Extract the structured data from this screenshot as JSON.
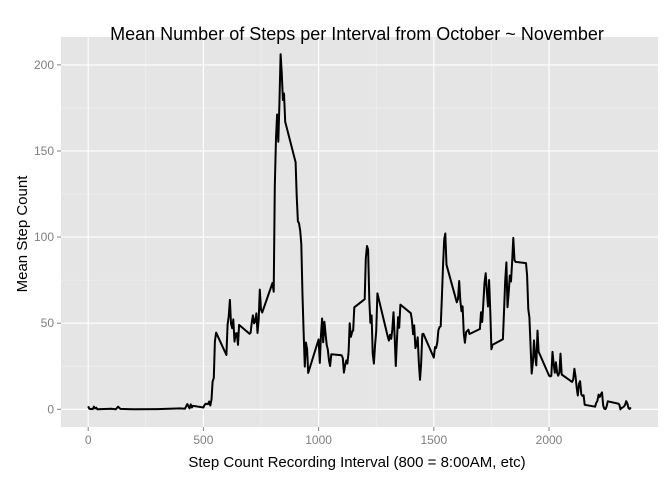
{
  "chart_data": {
    "type": "line",
    "title": "Mean Number of Steps per Interval from October ~ November",
    "xlabel": "Step Count Recording Interval (800 = 8:00AM, etc)",
    "ylabel": "Mean Step Count",
    "xlim": [
      -118,
      2473
    ],
    "ylim": [
      -10.3,
      216.2
    ],
    "xticks": [
      0,
      500,
      1000,
      1500,
      2000
    ],
    "yticks": [
      0,
      50,
      100,
      150,
      200
    ],
    "grid": true,
    "legend": "none",
    "colors": {
      "panel": "#e5e5e5",
      "grid_major": "#ffffff",
      "grid_minor": "#f2f2f2",
      "line": "#000000"
    },
    "series": [
      {
        "points": [
          [
            0,
            1.7
          ],
          [
            5,
            0.3
          ],
          [
            10,
            0.1
          ],
          [
            15,
            0.2
          ],
          [
            20,
            0.1
          ],
          [
            25,
            1.5
          ],
          [
            30,
            0.5
          ],
          [
            35,
            0.9
          ],
          [
            40,
            0.0
          ],
          [
            100,
            0.3
          ],
          [
            120,
            0.0
          ],
          [
            130,
            1.5
          ],
          [
            140,
            0.2
          ],
          [
            200,
            0.0
          ],
          [
            300,
            0.1
          ],
          [
            400,
            0.5
          ],
          [
            420,
            0.3
          ],
          [
            430,
            3.0
          ],
          [
            440,
            0.5
          ],
          [
            445,
            2.8
          ],
          [
            450,
            1.0
          ],
          [
            455,
            2.0
          ],
          [
            500,
            1.0
          ],
          [
            505,
            2.5
          ],
          [
            510,
            3.2
          ],
          [
            520,
            3.0
          ],
          [
            525,
            4.5
          ],
          [
            530,
            2.2
          ],
          [
            535,
            5.6
          ],
          [
            540,
            16.0
          ],
          [
            545,
            18.3
          ],
          [
            550,
            39.4
          ],
          [
            555,
            44.5
          ],
          [
            600,
            31.5
          ],
          [
            605,
            49.3
          ],
          [
            610,
            53.8
          ],
          [
            615,
            63.5
          ],
          [
            620,
            49.8
          ],
          [
            625,
            47.1
          ],
          [
            630,
            52.2
          ],
          [
            635,
            39.3
          ],
          [
            640,
            44.0
          ],
          [
            645,
            44.2
          ],
          [
            650,
            37.4
          ],
          [
            655,
            49.0
          ],
          [
            700,
            43.8
          ],
          [
            705,
            44.4
          ],
          [
            710,
            50.5
          ],
          [
            715,
            54.5
          ],
          [
            720,
            49.9
          ],
          [
            725,
            51.0
          ],
          [
            730,
            55.7
          ],
          [
            735,
            44.3
          ],
          [
            740,
            52.3
          ],
          [
            745,
            69.5
          ],
          [
            750,
            57.8
          ],
          [
            755,
            56.2
          ],
          [
            800,
            73.4
          ],
          [
            805,
            68.2
          ],
          [
            810,
            129.4
          ],
          [
            815,
            157.5
          ],
          [
            820,
            171.2
          ],
          [
            825,
            155.4
          ],
          [
            830,
            177.3
          ],
          [
            835,
            206.2
          ],
          [
            840,
            195.9
          ],
          [
            845,
            179.6
          ],
          [
            850,
            183.4
          ],
          [
            855,
            167.0
          ],
          [
            900,
            143.5
          ],
          [
            905,
            124.0
          ],
          [
            910,
            109.1
          ],
          [
            915,
            108.1
          ],
          [
            920,
            103.7
          ],
          [
            925,
            95.9
          ],
          [
            930,
            66.2
          ],
          [
            935,
            45.2
          ],
          [
            940,
            24.8
          ],
          [
            945,
            38.8
          ],
          [
            950,
            34.9
          ],
          [
            955,
            21.1
          ],
          [
            1000,
            40.6
          ],
          [
            1005,
            26.9
          ],
          [
            1010,
            42.4
          ],
          [
            1015,
            52.7
          ],
          [
            1020,
            38.9
          ],
          [
            1025,
            50.8
          ],
          [
            1030,
            44.3
          ],
          [
            1035,
            37.4
          ],
          [
            1040,
            34.7
          ],
          [
            1045,
            28.3
          ],
          [
            1050,
            25.1
          ],
          [
            1055,
            31.9
          ],
          [
            1100,
            31.4
          ],
          [
            1105,
            29.7
          ],
          [
            1110,
            21.3
          ],
          [
            1115,
            25.5
          ],
          [
            1120,
            28.4
          ],
          [
            1125,
            26.5
          ],
          [
            1130,
            33.4
          ],
          [
            1135,
            49.9
          ],
          [
            1140,
            42.0
          ],
          [
            1145,
            44.6
          ],
          [
            1150,
            46.0
          ],
          [
            1155,
            59.2
          ],
          [
            1200,
            63.9
          ],
          [
            1205,
            87.7
          ],
          [
            1210,
            94.8
          ],
          [
            1215,
            92.8
          ],
          [
            1220,
            63.4
          ],
          [
            1225,
            50.2
          ],
          [
            1230,
            54.5
          ],
          [
            1235,
            32.4
          ],
          [
            1240,
            26.5
          ],
          [
            1245,
            37.7
          ],
          [
            1250,
            45.1
          ],
          [
            1255,
            67.3
          ],
          [
            1300,
            42.3
          ],
          [
            1305,
            39.9
          ],
          [
            1310,
            43.3
          ],
          [
            1315,
            40.9
          ],
          [
            1320,
            46.2
          ],
          [
            1325,
            56.4
          ],
          [
            1330,
            42.8
          ],
          [
            1335,
            25.1
          ],
          [
            1340,
            39.9
          ],
          [
            1345,
            53.5
          ],
          [
            1350,
            47.3
          ],
          [
            1355,
            60.8
          ],
          [
            1400,
            55.8
          ],
          [
            1405,
            51.9
          ],
          [
            1410,
            43.6
          ],
          [
            1415,
            48.7
          ],
          [
            1420,
            35.5
          ],
          [
            1425,
            37.5
          ],
          [
            1430,
            41.8
          ],
          [
            1435,
            27.5
          ],
          [
            1440,
            17.1
          ],
          [
            1445,
            26.1
          ],
          [
            1450,
            43.6
          ],
          [
            1455,
            43.8
          ],
          [
            1500,
            30.0
          ],
          [
            1505,
            36.1
          ],
          [
            1510,
            35.5
          ],
          [
            1515,
            38.8
          ],
          [
            1520,
            45.9
          ],
          [
            1525,
            47.8
          ],
          [
            1530,
            48.1
          ],
          [
            1535,
            65.3
          ],
          [
            1540,
            82.9
          ],
          [
            1545,
            98.7
          ],
          [
            1550,
            102.1
          ],
          [
            1555,
            83.9
          ],
          [
            1600,
            62.1
          ],
          [
            1605,
            64.1
          ],
          [
            1610,
            74.5
          ],
          [
            1615,
            63.2
          ],
          [
            1620,
            56.9
          ],
          [
            1625,
            59.8
          ],
          [
            1630,
            43.9
          ],
          [
            1635,
            38.6
          ],
          [
            1640,
            44.7
          ],
          [
            1645,
            45.5
          ],
          [
            1650,
            46.2
          ],
          [
            1655,
            43.7
          ],
          [
            1700,
            46.6
          ],
          [
            1705,
            56.3
          ],
          [
            1710,
            50.7
          ],
          [
            1715,
            61.2
          ],
          [
            1720,
            73.4
          ],
          [
            1725,
            79.0
          ],
          [
            1730,
            68.9
          ],
          [
            1735,
            59.7
          ],
          [
            1740,
            75.1
          ],
          [
            1745,
            56.5
          ],
          [
            1750,
            34.8
          ],
          [
            1755,
            37.5
          ],
          [
            1800,
            40.7
          ],
          [
            1805,
            58.0
          ],
          [
            1810,
            74.7
          ],
          [
            1815,
            85.3
          ],
          [
            1820,
            59.3
          ],
          [
            1825,
            67.8
          ],
          [
            1830,
            77.7
          ],
          [
            1835,
            74.2
          ],
          [
            1840,
            85.3
          ],
          [
            1845,
            99.5
          ],
          [
            1850,
            86.6
          ],
          [
            1855,
            85.6
          ],
          [
            1900,
            84.9
          ],
          [
            1905,
            77.8
          ],
          [
            1910,
            58.0
          ],
          [
            1915,
            53.4
          ],
          [
            1920,
            36.3
          ],
          [
            1925,
            20.7
          ],
          [
            1930,
            27.4
          ],
          [
            1935,
            40.0
          ],
          [
            1940,
            30.2
          ],
          [
            1945,
            25.5
          ],
          [
            1950,
            45.7
          ],
          [
            1955,
            33.5
          ],
          [
            2000,
            19.6
          ],
          [
            2005,
            19.0
          ],
          [
            2010,
            19.3
          ],
          [
            2015,
            33.3
          ],
          [
            2020,
            26.8
          ],
          [
            2025,
            21.2
          ],
          [
            2030,
            27.3
          ],
          [
            2035,
            21.3
          ],
          [
            2040,
            19.5
          ],
          [
            2045,
            21.3
          ],
          [
            2050,
            32.3
          ],
          [
            2055,
            20.2
          ],
          [
            2100,
            15.9
          ],
          [
            2105,
            17.2
          ],
          [
            2110,
            23.5
          ],
          [
            2115,
            19.2
          ],
          [
            2120,
            12.5
          ],
          [
            2125,
            8.0
          ],
          [
            2130,
            14.7
          ],
          [
            2135,
            16.3
          ],
          [
            2140,
            8.7
          ],
          [
            2145,
            7.8
          ],
          [
            2150,
            8.1
          ],
          [
            2155,
            2.6
          ],
          [
            2200,
            1.5
          ],
          [
            2205,
            3.7
          ],
          [
            2210,
            4.8
          ],
          [
            2215,
            8.5
          ],
          [
            2220,
            7.1
          ],
          [
            2225,
            8.7
          ],
          [
            2230,
            9.8
          ],
          [
            2235,
            2.2
          ],
          [
            2240,
            0.3
          ],
          [
            2245,
            0.1
          ],
          [
            2250,
            1.6
          ],
          [
            2255,
            4.6
          ],
          [
            2300,
            3.3
          ],
          [
            2305,
            2.8
          ],
          [
            2310,
            0.0
          ],
          [
            2315,
            0.8
          ],
          [
            2320,
            1.0
          ],
          [
            2325,
            1.6
          ],
          [
            2330,
            2.6
          ],
          [
            2335,
            4.7
          ],
          [
            2340,
            3.3
          ],
          [
            2345,
            0.6
          ],
          [
            2350,
            0.2
          ],
          [
            2355,
            1.1
          ]
        ]
      }
    ]
  }
}
